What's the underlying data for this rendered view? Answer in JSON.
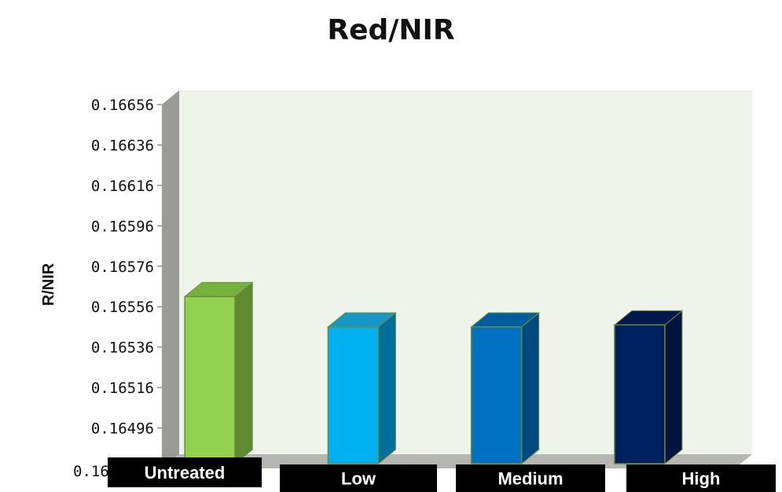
{
  "chart_data": {
    "type": "bar",
    "title": "Red/NIR",
    "ylabel": "R/NIR",
    "xlabel": "",
    "categories": [
      "Untreated",
      "Low",
      "Medium",
      "High"
    ],
    "values": [
      0.16561,
      0.16546,
      0.16546,
      0.16547
    ],
    "ylim": [
      0.16476,
      0.16656
    ],
    "yticks": [
      0.16656,
      0.16636,
      0.16616,
      0.16596,
      0.16576,
      0.16556,
      0.16536,
      0.16516,
      0.16496
    ],
    "bottom_tick_label": "0.16",
    "bar_colors": [
      {
        "front": "#92d050",
        "side": "#5f8a32",
        "top": "#76b33e"
      },
      {
        "front": "#00b0f0",
        "side": "#006f99",
        "top": "#1797c8"
      },
      {
        "front": "#0070c0",
        "side": "#004a80",
        "top": "#005ea0"
      },
      {
        "front": "#002060",
        "side": "#00143d",
        "top": "#00184d"
      }
    ],
    "plot_background": "#eef4ea",
    "grid": false,
    "legend": "none"
  }
}
